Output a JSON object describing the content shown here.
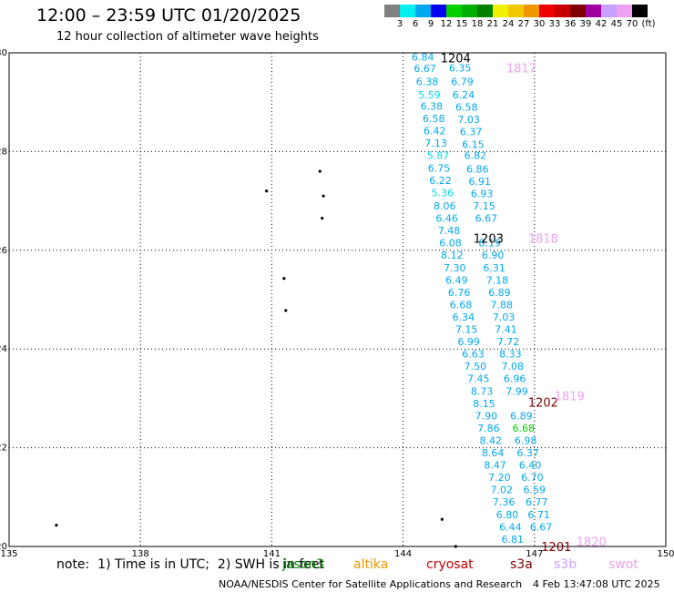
{
  "header": {
    "title": "12:00 – 23:59 UTC 01/20/2025",
    "subtitle": "12 hour collection of altimeter wave heights"
  },
  "legend": {
    "labels": [
      "3",
      "6",
      "9",
      "12",
      "15",
      "18",
      "21",
      "24",
      "27",
      "30",
      "33",
      "36",
      "39",
      "42",
      "45",
      "70",
      "(ft)"
    ],
    "colors": [
      "#808080",
      "#00f0f0",
      "#00a8f0",
      "#0000f0",
      "#00d000",
      "#00b000",
      "#008000",
      "#f0f000",
      "#f0c800",
      "#f09600",
      "#f00000",
      "#c80000",
      "#800000",
      "#a000a0",
      "#c8a0ff",
      "#f0a0f0",
      "#000000"
    ]
  },
  "axes": {
    "lon_ticks": [
      "135",
      "138",
      "141",
      "144",
      "147",
      "150"
    ],
    "lat_ticks": [
      "30",
      "28",
      "26",
      "24",
      "22",
      "20"
    ]
  },
  "chart_data": {
    "type": "map",
    "lon_range": [
      135,
      150
    ],
    "lat_range": [
      20,
      30
    ],
    "grid": true,
    "swh_values": [
      {
        "lat": 29.92,
        "lon": 144.45,
        "swh": "6.84",
        "color": "#00a8f0"
      },
      {
        "lat": 29.69,
        "lon": 144.5,
        "swh": "6.67",
        "color": "#00a8f0"
      },
      {
        "lat": 29.42,
        "lon": 144.55,
        "swh": "6.38",
        "color": "#00a8f0"
      },
      {
        "lat": 29.15,
        "lon": 144.6,
        "swh": "5.59",
        "color": "#00d8f0"
      },
      {
        "lat": 28.92,
        "lon": 144.65,
        "swh": "6.38",
        "color": "#00a8f0"
      },
      {
        "lat": 28.67,
        "lon": 144.7,
        "swh": "6.58",
        "color": "#00a8f0"
      },
      {
        "lat": 28.42,
        "lon": 144.72,
        "swh": "6.42",
        "color": "#00a8f0"
      },
      {
        "lat": 28.17,
        "lon": 144.75,
        "swh": "7.13",
        "color": "#00a8f0"
      },
      {
        "lat": 27.92,
        "lon": 144.8,
        "swh": "5.87",
        "color": "#00d8f0"
      },
      {
        "lat": 27.67,
        "lon": 144.82,
        "swh": "6.75",
        "color": "#00a8f0"
      },
      {
        "lat": 27.42,
        "lon": 144.85,
        "swh": "6.22",
        "color": "#00a8f0"
      },
      {
        "lat": 27.17,
        "lon": 144.9,
        "swh": "5.36",
        "color": "#00d8f0"
      },
      {
        "lat": 26.9,
        "lon": 144.95,
        "swh": "8.06",
        "color": "#00a8f0"
      },
      {
        "lat": 26.65,
        "lon": 145.0,
        "swh": "6.46",
        "color": "#00a8f0"
      },
      {
        "lat": 26.4,
        "lon": 145.05,
        "swh": "7.48",
        "color": "#00a8f0"
      },
      {
        "lat": 26.15,
        "lon": 145.08,
        "swh": "6.08",
        "color": "#00a8f0"
      },
      {
        "lat": 25.9,
        "lon": 145.12,
        "swh": "8.12",
        "color": "#00a8f0"
      },
      {
        "lat": 25.65,
        "lon": 145.18,
        "swh": "7.30",
        "color": "#00a8f0"
      },
      {
        "lat": 25.4,
        "lon": 145.22,
        "swh": "6.49",
        "color": "#00a8f0"
      },
      {
        "lat": 25.15,
        "lon": 145.28,
        "swh": "6.76",
        "color": "#00a8f0"
      },
      {
        "lat": 24.9,
        "lon": 145.32,
        "swh": "6.68",
        "color": "#00a8f0"
      },
      {
        "lat": 24.65,
        "lon": 145.38,
        "swh": "6.34",
        "color": "#00a8f0"
      },
      {
        "lat": 24.4,
        "lon": 145.45,
        "swh": "7.15",
        "color": "#00a8f0"
      },
      {
        "lat": 24.15,
        "lon": 145.5,
        "swh": "6.99",
        "color": "#00a8f0"
      },
      {
        "lat": 23.9,
        "lon": 145.6,
        "swh": "6.63",
        "color": "#00a8f0"
      },
      {
        "lat": 23.65,
        "lon": 145.65,
        "swh": "7.50",
        "color": "#00a8f0"
      },
      {
        "lat": 23.4,
        "lon": 145.72,
        "swh": "7.45",
        "color": "#00a8f0"
      },
      {
        "lat": 23.15,
        "lon": 145.8,
        "swh": "8.73",
        "color": "#00a8f0"
      },
      {
        "lat": 22.9,
        "lon": 145.85,
        "swh": "8.15",
        "color": "#00a8f0"
      },
      {
        "lat": 22.65,
        "lon": 145.9,
        "swh": "7.90",
        "color": "#00a8f0"
      },
      {
        "lat": 22.4,
        "lon": 145.95,
        "swh": "7.86",
        "color": "#00a8f0"
      },
      {
        "lat": 22.15,
        "lon": 146.0,
        "swh": "8.42",
        "color": "#00a8f0"
      },
      {
        "lat": 21.9,
        "lon": 146.05,
        "swh": "8.64",
        "color": "#00a8f0"
      },
      {
        "lat": 21.65,
        "lon": 146.1,
        "swh": "8.47",
        "color": "#00a8f0"
      },
      {
        "lat": 21.4,
        "lon": 146.2,
        "swh": "7.20",
        "color": "#00a8f0"
      },
      {
        "lat": 21.15,
        "lon": 146.25,
        "swh": "7.02",
        "color": "#00a8f0"
      },
      {
        "lat": 20.9,
        "lon": 146.3,
        "swh": "7.36",
        "color": "#00a8f0"
      },
      {
        "lat": 20.65,
        "lon": 146.38,
        "swh": "6.80",
        "color": "#00a8f0"
      },
      {
        "lat": 20.4,
        "lon": 146.45,
        "swh": "6.44",
        "color": "#00a8f0"
      },
      {
        "lat": 20.15,
        "lon": 146.5,
        "swh": "6.81",
        "color": "#00a8f0"
      },
      {
        "lat": 29.7,
        "lon": 145.3,
        "swh": "6.35",
        "color": "#00a8f0"
      },
      {
        "lat": 29.42,
        "lon": 145.35,
        "swh": "6.79",
        "color": "#00a8f0"
      },
      {
        "lat": 29.15,
        "lon": 145.38,
        "swh": "6.24",
        "color": "#00a8f0"
      },
      {
        "lat": 28.9,
        "lon": 145.45,
        "swh": "6.58",
        "color": "#00a8f0"
      },
      {
        "lat": 28.65,
        "lon": 145.5,
        "swh": "7.03",
        "color": "#00a8f0"
      },
      {
        "lat": 28.4,
        "lon": 145.55,
        "swh": "6.37",
        "color": "#00a8f0"
      },
      {
        "lat": 28.15,
        "lon": 145.6,
        "swh": "6.15",
        "color": "#00a8f0"
      },
      {
        "lat": 27.92,
        "lon": 145.65,
        "swh": "6.82",
        "color": "#00a8f0"
      },
      {
        "lat": 27.65,
        "lon": 145.7,
        "swh": "6.86",
        "color": "#00a8f0"
      },
      {
        "lat": 27.4,
        "lon": 145.75,
        "swh": "6.91",
        "color": "#00a8f0"
      },
      {
        "lat": 27.15,
        "lon": 145.8,
        "swh": "6.93",
        "color": "#00a8f0"
      },
      {
        "lat": 26.9,
        "lon": 145.85,
        "swh": "7.15",
        "color": "#00a8f0"
      },
      {
        "lat": 26.65,
        "lon": 145.9,
        "swh": "6.67",
        "color": "#00a8f0"
      },
      {
        "lat": 26.15,
        "lon": 145.98,
        "swh": "8.19",
        "color": "#00a8f0"
      },
      {
        "lat": 25.9,
        "lon": 146.05,
        "swh": "6.90",
        "color": "#00a8f0"
      },
      {
        "lat": 25.65,
        "lon": 146.08,
        "swh": "6.31",
        "color": "#00a8f0"
      },
      {
        "lat": 25.4,
        "lon": 146.15,
        "swh": "7.18",
        "color": "#00a8f0"
      },
      {
        "lat": 25.15,
        "lon": 146.2,
        "swh": "6.89",
        "color": "#00a8f0"
      },
      {
        "lat": 24.9,
        "lon": 146.25,
        "swh": "7.88",
        "color": "#00a8f0"
      },
      {
        "lat": 24.65,
        "lon": 146.3,
        "swh": "7.03",
        "color": "#00a8f0"
      },
      {
        "lat": 24.4,
        "lon": 146.35,
        "swh": "7.41",
        "color": "#00a8f0"
      },
      {
        "lat": 24.15,
        "lon": 146.4,
        "swh": "7.72",
        "color": "#00a8f0"
      },
      {
        "lat": 23.9,
        "lon": 146.45,
        "swh": "8.33",
        "color": "#00a8f0"
      },
      {
        "lat": 23.65,
        "lon": 146.5,
        "swh": "7.08",
        "color": "#00a8f0"
      },
      {
        "lat": 23.4,
        "lon": 146.55,
        "swh": "6.96",
        "color": "#00a8f0"
      },
      {
        "lat": 23.15,
        "lon": 146.6,
        "swh": "7.99",
        "color": "#00a8f0"
      },
      {
        "lat": 22.65,
        "lon": 146.7,
        "swh": "6.89",
        "color": "#00a8f0"
      },
      {
        "lat": 22.4,
        "lon": 146.75,
        "swh": "6.68",
        "color": "#00d000"
      },
      {
        "lat": 22.15,
        "lon": 146.8,
        "swh": "6.98",
        "color": "#00a8f0"
      },
      {
        "lat": 21.9,
        "lon": 146.85,
        "swh": "6.37",
        "color": "#00a8f0"
      },
      {
        "lat": 21.65,
        "lon": 146.9,
        "swh": "6.40",
        "color": "#00a8f0"
      },
      {
        "lat": 21.4,
        "lon": 146.95,
        "swh": "6.70",
        "color": "#00a8f0"
      },
      {
        "lat": 21.15,
        "lon": 147.0,
        "swh": "6.59",
        "color": "#00a8f0"
      },
      {
        "lat": 20.9,
        "lon": 147.05,
        "swh": "6.77",
        "color": "#00a8f0"
      },
      {
        "lat": 20.65,
        "lon": 147.1,
        "swh": "6.71",
        "color": "#00a8f0"
      },
      {
        "lat": 20.4,
        "lon": 147.15,
        "swh": "6.67",
        "color": "#00a8f0"
      }
    ],
    "pass_times": [
      {
        "lat": 29.9,
        "lon": 145.2,
        "text": "1204",
        "color": "#000000"
      },
      {
        "lat": 29.7,
        "lon": 146.7,
        "text": "1817",
        "color": "#f0a0f0"
      },
      {
        "lat": 26.25,
        "lon": 145.95,
        "text": "1203",
        "color": "#000000"
      },
      {
        "lat": 26.25,
        "lon": 147.2,
        "text": "1818",
        "color": "#f0a0f0"
      },
      {
        "lat": 22.92,
        "lon": 147.2,
        "text": "1202",
        "color": "#800000"
      },
      {
        "lat": 23.05,
        "lon": 147.8,
        "text": "1819",
        "color": "#f0a0f0"
      },
      {
        "lat": 20.1,
        "lon": 148.3,
        "text": "1820",
        "color": "#f0a0f0"
      },
      {
        "lat": 20.0,
        "lon": 147.5,
        "text": "1201",
        "color": "#800000"
      }
    ],
    "islands": [
      {
        "lat": 27.6,
        "lon": 142.1
      },
      {
        "lat": 27.1,
        "lon": 142.18
      },
      {
        "lat": 26.65,
        "lon": 142.15
      },
      {
        "lat": 27.2,
        "lon": 140.88
      },
      {
        "lat": 25.43,
        "lon": 141.28
      },
      {
        "lat": 24.78,
        "lon": 141.32
      },
      {
        "lat": 20.43,
        "lon": 136.08
      },
      {
        "lat": 20.55,
        "lon": 144.89
      },
      {
        "lat": 20.0,
        "lon": 145.2
      }
    ]
  },
  "footer": {
    "note": "note:  1) Time is in UTC;  2) SWH is in feet",
    "satellites": [
      {
        "name": "jason3",
        "color": "#008000"
      },
      {
        "name": "altika",
        "color": "#f09600"
      },
      {
        "name": "cryosat",
        "color": "#c80000"
      },
      {
        "name": "s3a",
        "color": "#800000"
      },
      {
        "name": "s3b",
        "color": "#c8a0ff"
      },
      {
        "name": "swot",
        "color": "#f0a0f0"
      }
    ],
    "credit": "NOAA/NESDIS Center for Satellite Applications and Research",
    "generated": "4 Feb 13:47:08 UTC 2025"
  }
}
